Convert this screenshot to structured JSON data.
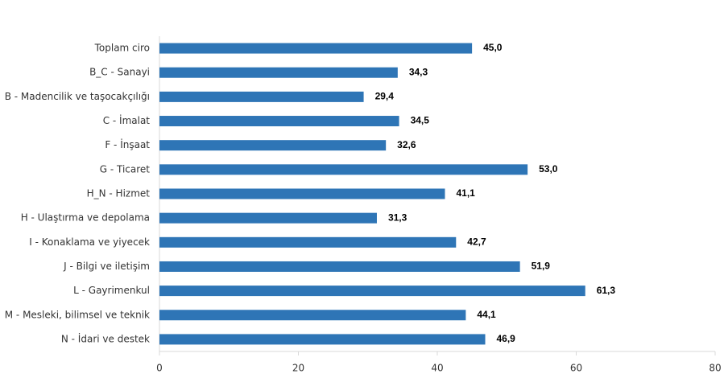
{
  "chart_data": {
    "type": "bar",
    "orientation": "horizontal",
    "categories": [
      "Toplam ciro",
      "B_C - Sanayi",
      "B - Madencilik ve taşocakçılığı",
      "C - İmalat",
      "F - İnşaat",
      "G - Ticaret",
      "H_N - Hizmet",
      "H - Ulaştırma ve depolama",
      "I - Konaklama ve yiyecek",
      "J - Bilgi ve iletişim",
      "L - Gayrimenkul",
      "M - Mesleki, bilimsel ve teknik",
      "N - İdari ve destek"
    ],
    "values": [
      45.0,
      34.3,
      29.4,
      34.5,
      32.6,
      53.0,
      41.1,
      31.3,
      42.7,
      51.9,
      61.3,
      44.1,
      46.9
    ],
    "value_labels": [
      "45,0",
      "34,3",
      "29,4",
      "34,5",
      "32,6",
      "53,0",
      "41,1",
      "31,3",
      "42,7",
      "51,9",
      "61,3",
      "44,1",
      "46,9"
    ],
    "color": "#2e75b6",
    "xlim": [
      0,
      80
    ],
    "xticks": [
      0,
      20,
      40,
      60,
      80
    ],
    "grid": false
  }
}
